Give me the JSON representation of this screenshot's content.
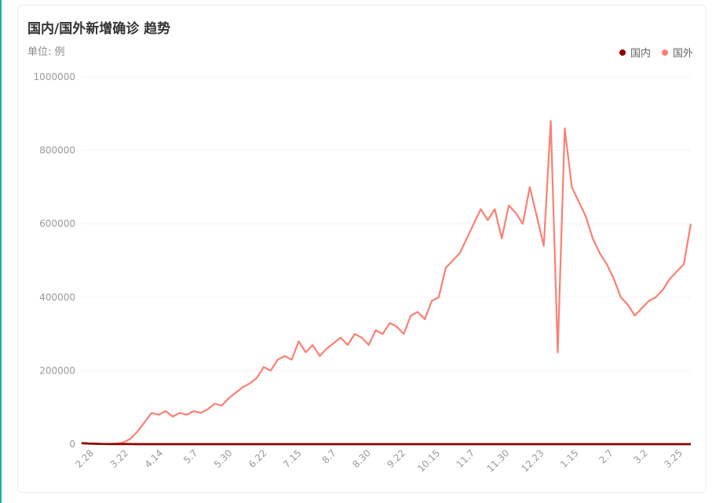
{
  "header": {
    "title": "国内/国外新增确诊 趋势",
    "unit": "单位: 例"
  },
  "legend": [
    {
      "label": "国内",
      "color": "#8b0000"
    },
    {
      "label": "国外",
      "color": "#fa8072"
    }
  ],
  "chart_data": {
    "type": "line",
    "title": "国内/国外新增确诊 趋势",
    "ylabel": "单位: 例",
    "ylim": [
      0,
      1000000
    ],
    "y_ticks": [
      0,
      200000,
      400000,
      600000,
      800000,
      1000000
    ],
    "y_tick_labels": [
      "0",
      "200000",
      "400000",
      "600000",
      "800000",
      "1000000"
    ],
    "x_tick_labels": [
      "2.28",
      "3.22",
      "4.14",
      "5.7",
      "5.30",
      "6.22",
      "7.15",
      "8.7",
      "8.30",
      "9.22",
      "10.15",
      "11.7",
      "11.30",
      "12.23",
      "1.15",
      "2.7",
      "3.2",
      "3.25"
    ],
    "grid": true,
    "legend_position": "top-right",
    "series": [
      {
        "name": "国内",
        "color": "#8b0000",
        "values": [
          3000,
          1500,
          1000,
          500,
          300,
          200,
          200,
          150,
          100,
          100,
          100,
          100,
          100,
          100,
          100,
          100,
          100,
          100,
          100,
          100,
          100,
          100,
          100,
          100,
          100,
          100,
          100,
          100,
          100,
          100,
          100,
          100,
          100,
          100,
          100,
          100,
          100,
          100,
          100,
          100,
          100,
          100,
          100,
          100,
          100,
          100,
          100,
          100,
          100,
          100,
          100,
          100,
          100,
          100,
          100,
          100,
          100,
          100,
          100,
          100,
          100,
          100,
          100,
          100,
          100,
          100,
          100,
          100,
          100,
          100,
          100,
          100,
          100,
          100,
          100,
          100,
          100,
          100,
          100,
          100,
          100,
          100,
          100,
          100,
          100,
          100,
          100,
          100
        ]
      },
      {
        "name": "国外",
        "color": "#fa8072",
        "values": [
          1500,
          1000,
          800,
          800,
          1000,
          2000,
          5000,
          15000,
          35000,
          60000,
          85000,
          80000,
          90000,
          75000,
          85000,
          80000,
          90000,
          85000,
          95000,
          110000,
          105000,
          125000,
          140000,
          155000,
          165000,
          180000,
          210000,
          200000,
          230000,
          240000,
          230000,
          280000,
          250000,
          270000,
          240000,
          260000,
          275000,
          290000,
          270000,
          300000,
          290000,
          270000,
          310000,
          300000,
          330000,
          320000,
          300000,
          350000,
          360000,
          340000,
          390000,
          400000,
          480000,
          500000,
          520000,
          560000,
          600000,
          640000,
          610000,
          640000,
          560000,
          650000,
          630000,
          600000,
          700000,
          620000,
          540000,
          880000,
          250000,
          860000,
          700000,
          660000,
          620000,
          560000,
          520000,
          490000,
          450000,
          400000,
          380000,
          350000,
          370000,
          390000,
          400000,
          420000,
          450000,
          470000,
          490000,
          600000
        ]
      }
    ]
  }
}
